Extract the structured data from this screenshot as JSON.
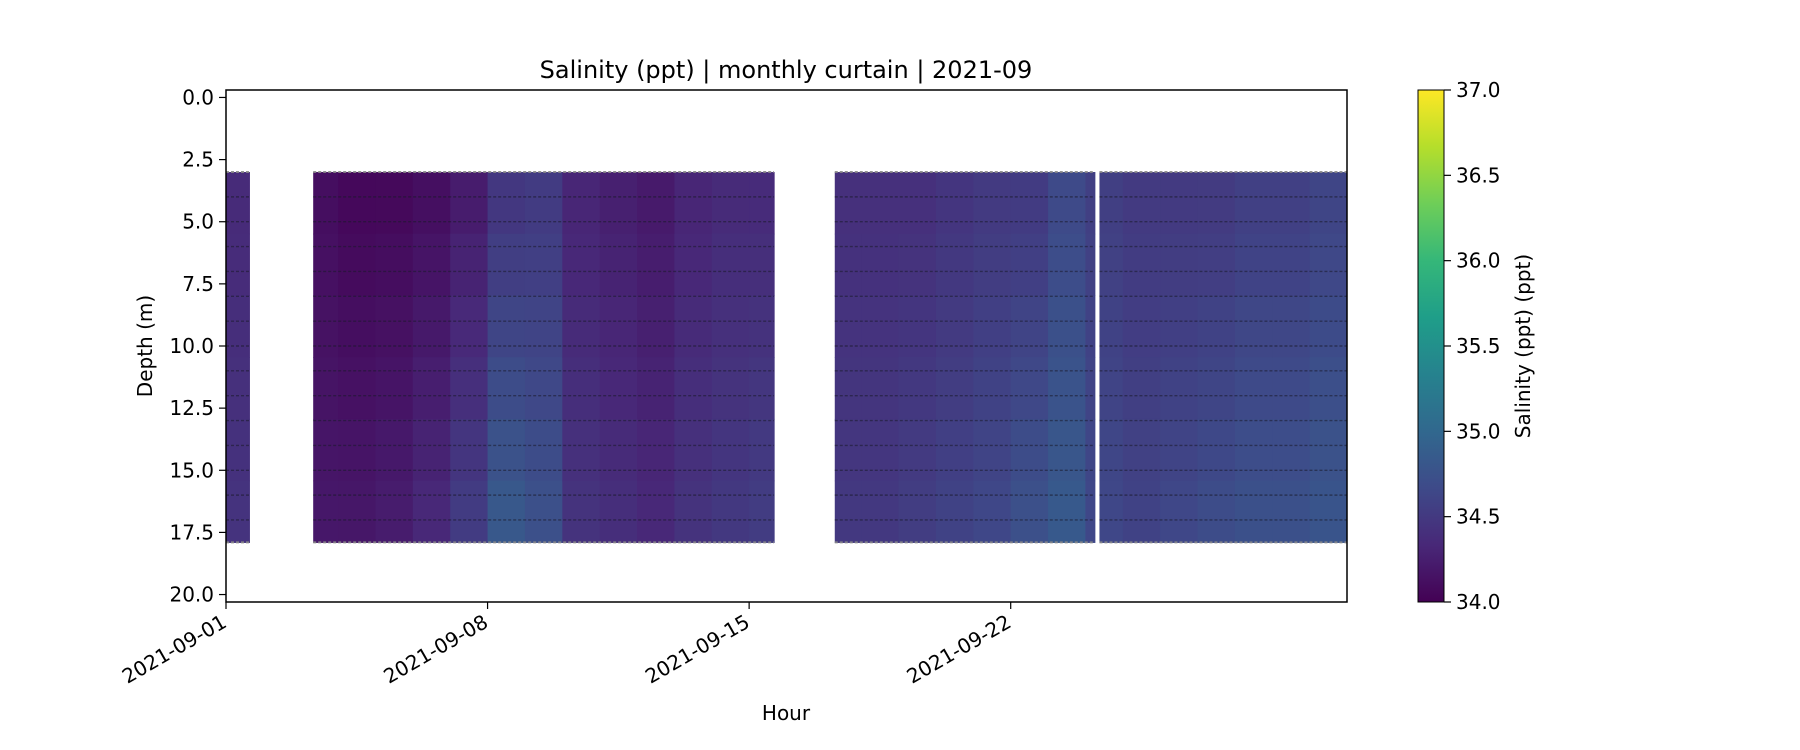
{
  "chart_data": {
    "type": "heatmap",
    "title": "Salinity (ppt) | monthly curtain | 2021-09",
    "xlabel": "Hour",
    "ylabel": "Depth (m)",
    "colorbar_label": "Salinity (ppt) (ppt)",
    "colormap": "viridis",
    "colormap_stops": [
      "#440154",
      "#482878",
      "#3e4a89",
      "#31688e",
      "#26828e",
      "#1f9e89",
      "#35b779",
      "#6ece58",
      "#b5de2b",
      "#fde725"
    ],
    "xlim": [
      "2021-09-01",
      "2021-10-01"
    ],
    "ylim": [
      20.3,
      -0.3
    ],
    "clim": [
      34.0,
      37.0
    ],
    "xticks": [
      {
        "value": "2021-09-01",
        "label": "2021-09-01"
      },
      {
        "value": "2021-09-08",
        "label": "2021-09-08"
      },
      {
        "value": "2021-09-15",
        "label": "2021-09-15"
      },
      {
        "value": "2021-09-22",
        "label": "2021-09-22"
      }
    ],
    "yticks": [
      {
        "value": 0.0,
        "label": "0.0"
      },
      {
        "value": 2.5,
        "label": "2.5"
      },
      {
        "value": 5.0,
        "label": "5.0"
      },
      {
        "value": 7.5,
        "label": "7.5"
      },
      {
        "value": 10.0,
        "label": "10.0"
      },
      {
        "value": 12.5,
        "label": "12.5"
      },
      {
        "value": 15.0,
        "label": "15.0"
      },
      {
        "value": 17.5,
        "label": "17.5"
      },
      {
        "value": 20.0,
        "label": "20.0"
      }
    ],
    "cbar_ticks": [
      {
        "value": 34.0,
        "label": "34.0"
      },
      {
        "value": 34.5,
        "label": "34.5"
      },
      {
        "value": 35.0,
        "label": "35.0"
      },
      {
        "value": 35.5,
        "label": "35.5"
      },
      {
        "value": 36.0,
        "label": "36.0"
      },
      {
        "value": 36.5,
        "label": "36.5"
      },
      {
        "value": 37.0,
        "label": "37.0"
      }
    ],
    "segments": [
      {
        "start": "2021-09-01 00:00",
        "end": "2021-09-01 15:00",
        "top_depth": 3.0,
        "bottom_depth": 17.9
      },
      {
        "start": "2021-09-03 08:00",
        "end": "2021-09-15 16:00",
        "top_depth": 3.0,
        "bottom_depth": 17.9
      },
      {
        "start": "2021-09-17 07:00",
        "end": "2021-09-24 06:00",
        "top_depth": 3.0,
        "bottom_depth": 17.9
      },
      {
        "start": "2021-09-24 09:00",
        "end": "2021-10-01 00:00",
        "top_depth": 3.0,
        "bottom_depth": 17.9
      }
    ],
    "surface_salinity_by_day": [
      {
        "date": "2021-09-01",
        "value": 34.35
      },
      {
        "date": "2021-09-03",
        "value": 34.1
      },
      {
        "date": "2021-09-04",
        "value": 34.05
      },
      {
        "date": "2021-09-05",
        "value": 34.05
      },
      {
        "date": "2021-09-06",
        "value": 34.1
      },
      {
        "date": "2021-09-07",
        "value": 34.2
      },
      {
        "date": "2021-09-08",
        "value": 34.45
      },
      {
        "date": "2021-09-09",
        "value": 34.5
      },
      {
        "date": "2021-09-10",
        "value": 34.3
      },
      {
        "date": "2021-09-11",
        "value": 34.25
      },
      {
        "date": "2021-09-12",
        "value": 34.2
      },
      {
        "date": "2021-09-13",
        "value": 34.3
      },
      {
        "date": "2021-09-14",
        "value": 34.35
      },
      {
        "date": "2021-09-15",
        "value": 34.35
      },
      {
        "date": "2021-09-17",
        "value": 34.4
      },
      {
        "date": "2021-09-18",
        "value": 34.4
      },
      {
        "date": "2021-09-19",
        "value": 34.4
      },
      {
        "date": "2021-09-20",
        "value": 34.45
      },
      {
        "date": "2021-09-21",
        "value": 34.5
      },
      {
        "date": "2021-09-22",
        "value": 34.5
      },
      {
        "date": "2021-09-23",
        "value": 34.65
      },
      {
        "date": "2021-09-24",
        "value": 34.55
      },
      {
        "date": "2021-09-25",
        "value": 34.5
      },
      {
        "date": "2021-09-26",
        "value": 34.5
      },
      {
        "date": "2021-09-27",
        "value": 34.5
      },
      {
        "date": "2021-09-28",
        "value": 34.55
      },
      {
        "date": "2021-09-29",
        "value": 34.55
      },
      {
        "date": "2021-09-30",
        "value": 34.6
      }
    ],
    "bottom_salinity_by_day": [
      {
        "date": "2021-09-01",
        "value": 34.45
      },
      {
        "date": "2021-09-03",
        "value": 34.2
      },
      {
        "date": "2021-09-04",
        "value": 34.2
      },
      {
        "date": "2021-09-05",
        "value": 34.25
      },
      {
        "date": "2021-09-06",
        "value": 34.35
      },
      {
        "date": "2021-09-07",
        "value": 34.55
      },
      {
        "date": "2021-09-08",
        "value": 34.85
      },
      {
        "date": "2021-09-09",
        "value": 34.75
      },
      {
        "date": "2021-09-10",
        "value": 34.45
      },
      {
        "date": "2021-09-11",
        "value": 34.4
      },
      {
        "date": "2021-09-12",
        "value": 34.35
      },
      {
        "date": "2021-09-13",
        "value": 34.45
      },
      {
        "date": "2021-09-14",
        "value": 34.5
      },
      {
        "date": "2021-09-15",
        "value": 34.55
      },
      {
        "date": "2021-09-17",
        "value": 34.5
      },
      {
        "date": "2021-09-18",
        "value": 34.5
      },
      {
        "date": "2021-09-19",
        "value": 34.55
      },
      {
        "date": "2021-09-20",
        "value": 34.6
      },
      {
        "date": "2021-09-21",
        "value": 34.65
      },
      {
        "date": "2021-09-22",
        "value": 34.75
      },
      {
        "date": "2021-09-23",
        "value": 34.85
      },
      {
        "date": "2021-09-24",
        "value": 34.65
      },
      {
        "date": "2021-09-25",
        "value": 34.6
      },
      {
        "date": "2021-09-26",
        "value": 34.65
      },
      {
        "date": "2021-09-27",
        "value": 34.7
      },
      {
        "date": "2021-09-28",
        "value": 34.75
      },
      {
        "date": "2021-09-29",
        "value": 34.75
      },
      {
        "date": "2021-09-30",
        "value": 34.8
      }
    ],
    "sensor_depths": [
      3.0,
      4.0,
      5.0,
      6.0,
      7.0,
      8.0,
      9.0,
      10.0,
      11.0,
      12.0,
      13.0,
      14.0,
      15.0,
      16.0,
      17.0,
      17.9
    ],
    "grid": false
  }
}
